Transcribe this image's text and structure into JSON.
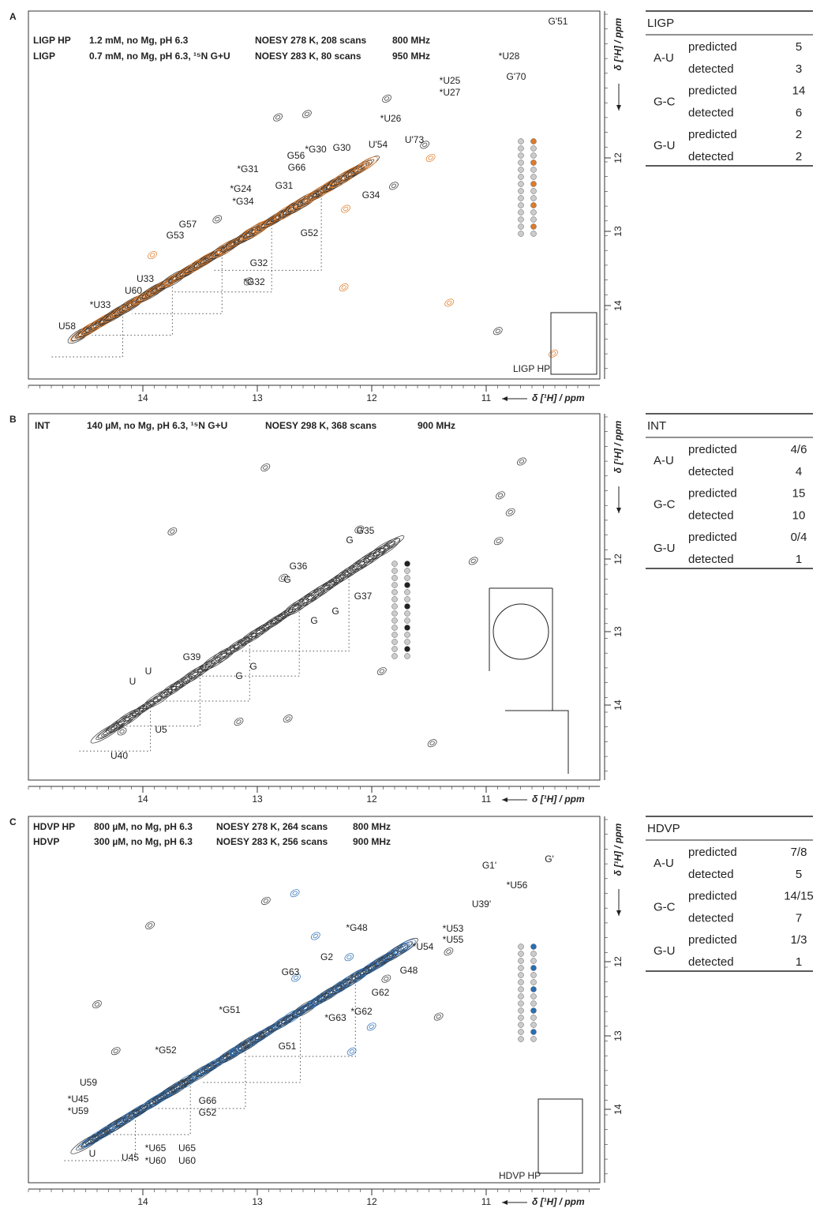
{
  "panels": [
    {
      "label": "A",
      "headers": [
        {
          "color": "#222222",
          "parts": [
            "LIGP HP",
            "1.2 mM, no Mg, pH 6.3",
            "NOESY 278 K, 208 scans",
            "800 MHz"
          ]
        },
        {
          "color": "#e07a26",
          "parts": [
            "LIGP",
            "0.7 mM, no Mg, pH 6.3, ¹⁵N G+U",
            "NOESY 283 K, 80 scans",
            "950 MHz"
          ]
        }
      ],
      "x_ticks": [
        "14",
        "13",
        "12",
        "11"
      ],
      "x_axis_label": "δ [¹H] / ppm",
      "y_ticks": [
        "12",
        "13",
        "14"
      ],
      "y_axis_label": "δ [¹H] / ppm",
      "accent_color": "#e07a26",
      "labels_dark": [
        "*U28",
        "*U25",
        "*U27",
        "*U26",
        "*G30",
        "*G31",
        "*G24",
        "*G34",
        "*G32",
        "*U33"
      ],
      "labels_accent": [
        "G'51",
        "G'70",
        "U'73",
        "U'54",
        "G30",
        "G56",
        "G66",
        "G31",
        "G34",
        "G57",
        "G53",
        "G52",
        "G32",
        "U33",
        "U60",
        "U58"
      ],
      "structure_label": "LIGP HP",
      "table": {
        "title": "LIGP",
        "rows": [
          [
            "A-U",
            "predicted",
            "5",
            "detected",
            "3"
          ],
          [
            "G-C",
            "predicted",
            "14",
            "detected",
            "6"
          ],
          [
            "G-U",
            "predicted",
            "2",
            "detected",
            "2"
          ]
        ]
      }
    },
    {
      "label": "B",
      "headers": [
        {
          "color": "#222222",
          "parts": [
            "INT",
            "140 µM, no Mg, pH 6.3, ¹⁵N G+U",
            "NOESY 298 K, 368 scans",
            "900 MHz"
          ]
        }
      ],
      "x_ticks": [
        "14",
        "13",
        "12",
        "11"
      ],
      "x_axis_label": "δ [¹H] / ppm",
      "y_ticks": [
        "12",
        "13",
        "14"
      ],
      "y_axis_label": "δ [¹H] / ppm",
      "accent_color": "#222222",
      "labels_dark": [
        "G35",
        "G",
        "G36",
        "G",
        "G37",
        "G",
        "G",
        "G39",
        "G",
        "G",
        "U",
        "U",
        "U5",
        "U40"
      ],
      "labels_accent": [],
      "table": {
        "title": "INT",
        "rows": [
          [
            "A-U",
            "predicted",
            "4/6",
            "detected",
            "4"
          ],
          [
            "G-C",
            "predicted",
            "15",
            "detected",
            "10"
          ],
          [
            "G-U",
            "predicted",
            "0/4",
            "detected",
            "1"
          ]
        ]
      }
    },
    {
      "label": "C",
      "headers": [
        {
          "color": "#222222",
          "parts": [
            "HDVP HP",
            "800 µM, no Mg, pH 6.3",
            "NOESY 278 K, 264 scans",
            "800 MHz"
          ]
        },
        {
          "color": "#2a6db5",
          "parts": [
            "HDVP",
            "300 µM, no Mg, pH 6.3",
            "NOESY 283 K, 256 scans",
            "900 MHz"
          ]
        }
      ],
      "x_ticks": [
        "14",
        "13",
        "12",
        "11"
      ],
      "x_axis_label": "δ [¹H] / ppm",
      "y_ticks": [
        "12",
        "13",
        "14"
      ],
      "y_axis_label": "δ [¹H] / ppm",
      "accent_color": "#2a6db5",
      "labels_dark": [
        "*U56",
        "*G48",
        "*U53",
        "*U55",
        "*U54",
        "*G62",
        "*G63",
        "*G51",
        "*G52",
        "*U45",
        "*U59",
        "*U65",
        "*U60"
      ],
      "labels_accent": [
        "G'",
        "G1'",
        "U39'",
        "G2",
        "G48",
        "G63",
        "G62",
        "G51",
        "U59",
        "G66",
        "G52",
        "U",
        "U45",
        "U65",
        "U60"
      ],
      "structure_label": "HDVP HP",
      "table": {
        "title": "HDVP",
        "rows": [
          [
            "A-U",
            "predicted",
            "7/8",
            "detected",
            "5"
          ],
          [
            "G-C",
            "predicted",
            "14/15",
            "detected",
            "7"
          ],
          [
            "G-U",
            "predicted",
            "1/3",
            "detected",
            "1"
          ]
        ]
      }
    }
  ]
}
